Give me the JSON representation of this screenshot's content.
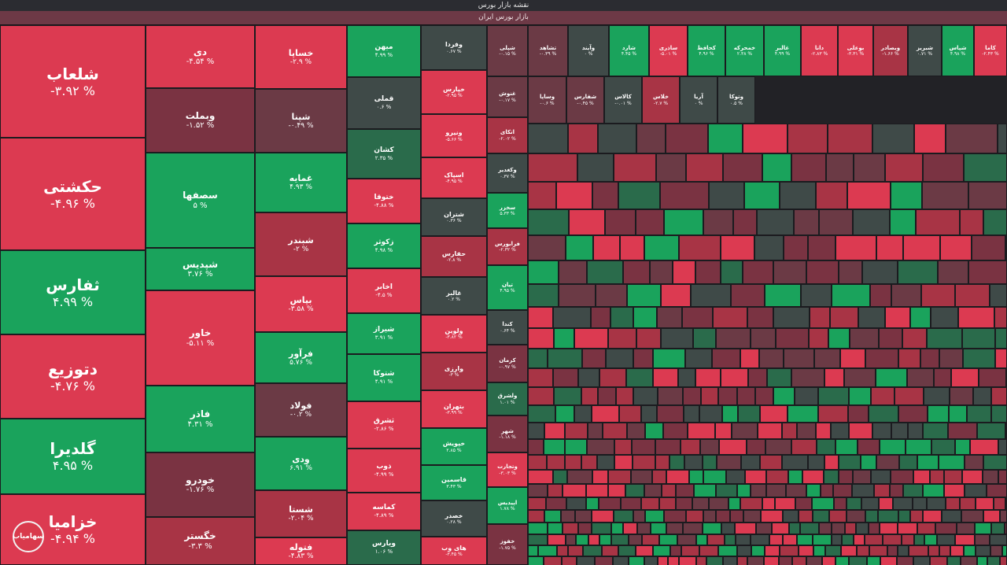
{
  "page": {
    "title": "نقشه بازار بورس",
    "market_label": "بازار بورس ایران",
    "logo_text": "سهامیاب"
  },
  "colors": {
    "strong_red": "#dc3a51",
    "red": "#a83445",
    "dark_red": "#7a3342",
    "muted_red": "#6b3a45",
    "neutral": "#3f4a48",
    "dark_green": "#2a6b4b",
    "green": "#1aa35c",
    "strong_green": "#22b568"
  },
  "tiles": [
    {
      "name": "شلعاب",
      "change": "-۳.۹۲ %",
      "c": "strong_red"
    },
    {
      "name": "حکشتی",
      "change": "-۴.۹۶ %",
      "c": "strong_red"
    },
    {
      "name": "ثفارس",
      "change": "۴.۹۹ %",
      "c": "green"
    },
    {
      "name": "دتوزیع",
      "change": "-۴.۷۶ %",
      "c": "strong_red"
    },
    {
      "name": "گلدیرا",
      "change": "۴.۹۵ %",
      "c": "green"
    },
    {
      "name": "خزامیا",
      "change": "-۴.۹۴ %",
      "c": "strong_red"
    },
    {
      "name": "دی",
      "change": "-۴.۵۴ %",
      "c": "strong_red"
    },
    {
      "name": "وبملت",
      "change": "-۱.۵۲ %",
      "c": "dark_red"
    },
    {
      "name": "سصفها",
      "change": "۵ %",
      "c": "green"
    },
    {
      "name": "شپدیس",
      "change": "۳.۷۶ %",
      "c": "green"
    },
    {
      "name": "خاور",
      "change": "-۵.۱۱ %",
      "c": "strong_red"
    },
    {
      "name": "فاذر",
      "change": "۴.۳۱ %",
      "c": "green"
    },
    {
      "name": "خودرو",
      "change": "-۱.۷۶ %",
      "c": "dark_red"
    },
    {
      "name": "خگستر",
      "change": "-۳.۳ %",
      "c": "red"
    },
    {
      "name": "خساپا",
      "change": "-۲.۹ %",
      "c": "strong_red"
    },
    {
      "name": "شپنا",
      "change": "-۰.۴۹ %",
      "c": "muted_red"
    },
    {
      "name": "غمایه",
      "change": "۴.۹۳ %",
      "c": "green"
    },
    {
      "name": "شبندر",
      "change": "-۲ %",
      "c": "red"
    },
    {
      "name": "بپاس",
      "change": "-۳.۵۸ %",
      "c": "strong_red"
    },
    {
      "name": "فرآور",
      "change": "۵.۷۶ %",
      "c": "green"
    },
    {
      "name": "فولاد",
      "change": "-۰.۲ %",
      "c": "muted_red"
    },
    {
      "name": "ودی",
      "change": "۶.۹۱ %",
      "c": "green"
    },
    {
      "name": "شستا",
      "change": "-۲.۰۴ %",
      "c": "red"
    },
    {
      "name": "فتوله",
      "change": "-۴.۸۳ %",
      "c": "strong_red"
    },
    {
      "name": "میهن",
      "change": "۴.۹۹ %",
      "c": "green"
    },
    {
      "name": "قملی",
      "change": "۰.۶ %",
      "c": "neutral"
    },
    {
      "name": "کشان",
      "change": "۲.۳۵ %",
      "c": "dark_green"
    },
    {
      "name": "ختوقا",
      "change": "-۴.۸۸ %",
      "c": "strong_red"
    },
    {
      "name": "زکوثر",
      "change": "۴.۹۸ %",
      "c": "green"
    },
    {
      "name": "اخابر",
      "change": "-۴.۵ %",
      "c": "strong_red"
    },
    {
      "name": "شیراز",
      "change": "۳.۹۱ %",
      "c": "green"
    },
    {
      "name": "شتوکا",
      "change": "۴.۹۱ %",
      "c": "green"
    },
    {
      "name": "ثشرق",
      "change": "-۲.۸۶ %",
      "c": "strong_red"
    },
    {
      "name": "ذوب",
      "change": "-۴.۹۹ %",
      "c": "strong_red"
    },
    {
      "name": "کماسه",
      "change": "-۴.۸۹ %",
      "c": "strong_red"
    },
    {
      "name": "ویارس",
      "change": "۱.۰۶ %",
      "c": "dark_green"
    },
    {
      "name": "وفردا",
      "change": "۰.۶۷ %",
      "c": "neutral"
    },
    {
      "name": "خپارس",
      "change": "-۲.۹۵ %",
      "c": "strong_red"
    },
    {
      "name": "ونیرو",
      "change": "-۵.۶۶ %",
      "c": "strong_red"
    },
    {
      "name": "اسپاک",
      "change": "-۴.۹۵ %",
      "c": "strong_red"
    },
    {
      "name": "شتران",
      "change": "۰.۳۶ %",
      "c": "neutral"
    },
    {
      "name": "حفارس",
      "change": "-۲.۸ %",
      "c": "red"
    },
    {
      "name": "غالبر",
      "change": "۰.۲ %",
      "c": "neutral"
    },
    {
      "name": "ولوین",
      "change": "-۳.۸۲ %",
      "c": "strong_red"
    },
    {
      "name": "وارزی",
      "change": "-۳ %",
      "c": "red"
    },
    {
      "name": "بتهران",
      "change": "-۳.۹۹ %",
      "c": "strong_red"
    },
    {
      "name": "خپویش",
      "change": "۲.۸۵ %",
      "c": "green"
    },
    {
      "name": "قاسمین",
      "change": "۳.۴۳ %",
      "c": "green"
    },
    {
      "name": "خصدر",
      "change": "۰.۲۸ %",
      "c": "neutral"
    },
    {
      "name": "های وب",
      "change": "-۳.۴۵ %",
      "c": "strong_red"
    },
    {
      "name": "شپلی",
      "change": "-۰.۱۵ %",
      "c": "muted_red"
    },
    {
      "name": "تشاهد",
      "change": "-۰.۳۹ %",
      "c": "muted_red"
    },
    {
      "name": "وآیند",
      "change": "۰ %",
      "c": "neutral"
    },
    {
      "name": "شارد",
      "change": "۴.۴۵ %",
      "c": "green"
    },
    {
      "name": "ساذری",
      "change": "-۵.۰۱ %",
      "c": "strong_red"
    },
    {
      "name": "کحافظ",
      "change": "۴.۹۶ %",
      "c": "green"
    },
    {
      "name": "خمحرکه",
      "change": "۲.۳۸ %",
      "c": "green"
    },
    {
      "name": "غالبر",
      "change": "۴.۹۹ %",
      "c": "green"
    },
    {
      "name": "دانا",
      "change": "-۲.۸۳ %",
      "c": "strong_red"
    },
    {
      "name": "بوعلی",
      "change": "-۳.۳۱ %",
      "c": "strong_red"
    },
    {
      "name": "وبصادر",
      "change": "-۱.۶۶ %",
      "c": "red"
    },
    {
      "name": "شبریز",
      "change": "۰.۷۱ %",
      "c": "neutral"
    },
    {
      "name": "شپاس",
      "change": "۴.۹۸ %",
      "c": "green"
    },
    {
      "name": "کاما",
      "change": "-۲.۴۳ %",
      "c": "strong_red"
    },
    {
      "name": "غنوش",
      "change": "-۰.۱۷ %",
      "c": "muted_red"
    },
    {
      "name": "اتکای",
      "change": "-۲.۰۲ %",
      "c": "red"
    },
    {
      "name": "وکغدیر",
      "change": "۰.۳۷ %",
      "c": "neutral"
    },
    {
      "name": "سخزر",
      "change": "۵.۳۳ %",
      "c": "green"
    },
    {
      "name": "فرابورس",
      "change": "-۲.۳۲ %",
      "c": "red"
    },
    {
      "name": "تیان",
      "change": "۴.۹۵ %",
      "c": "green"
    },
    {
      "name": "کندا",
      "change": "۰.۶۴ %",
      "c": "neutral"
    },
    {
      "name": "کرمان",
      "change": "-۰.۹۷ %",
      "c": "dark_red"
    },
    {
      "name": "ولشرق",
      "change": "۱.۰۱ %",
      "c": "dark_green"
    },
    {
      "name": "شهر",
      "change": "-۱.۱۸ %",
      "c": "dark_red"
    },
    {
      "name": "وتجارت",
      "change": "-۳.۰۳ %",
      "c": "strong_red"
    },
    {
      "name": "اپیدیس",
      "change": "۱.۷۸ %",
      "c": "green"
    },
    {
      "name": "خفوز",
      "change": "-۱.۷۵ %",
      "c": "dark_red"
    },
    {
      "name": "وساپا",
      "change": "-۰.۶ %",
      "c": "muted_red"
    },
    {
      "name": "شفارس",
      "change": "-۰.۴۵ %",
      "c": "muted_red"
    },
    {
      "name": "کالاس",
      "change": "-۰.۰۱ %",
      "c": "neutral"
    },
    {
      "name": "خلاس",
      "change": "-۲.۷ %",
      "c": "red"
    },
    {
      "name": "آریا",
      "change": "۰ %",
      "c": "neutral"
    },
    {
      "name": "وتوکا",
      "change": "۰.۵ %",
      "c": "neutral"
    }
  ]
}
